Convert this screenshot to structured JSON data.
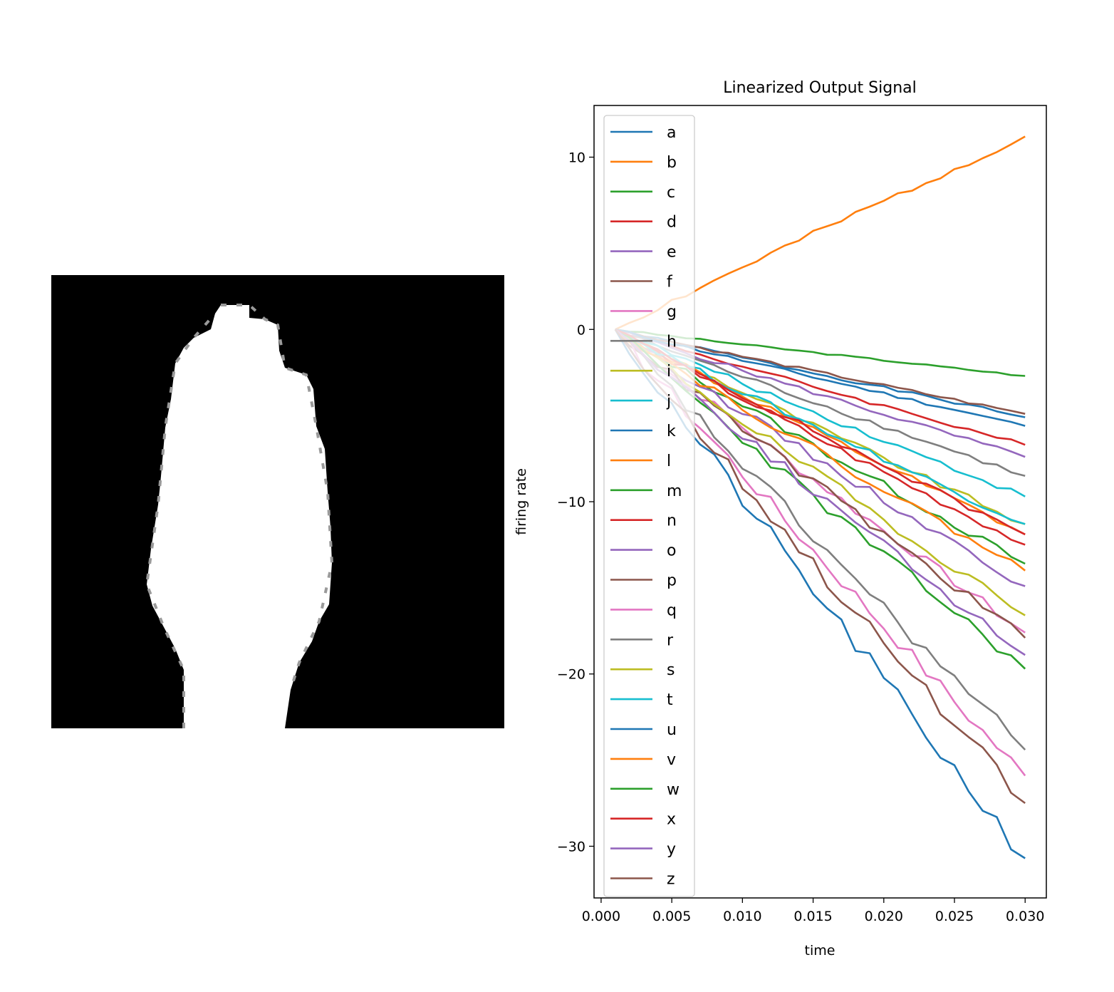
{
  "colors": [
    "#1f77b4",
    "#ff7f0e",
    "#2ca02c",
    "#d62728",
    "#9467bd",
    "#8c564b",
    "#e377c2",
    "#7f7f7f",
    "#bcbd22",
    "#17becf"
  ],
  "image_panel": {
    "description_icon": "silhouette-image",
    "pixel_mask_type": "binary-grayscale"
  },
  "chart_data": {
    "type": "line",
    "title": "Linearized Output Signal",
    "xlabel": "time",
    "ylabel": "firing rate",
    "xlim": [
      -0.0005,
      0.0315
    ],
    "ylim": [
      -33,
      13
    ],
    "xticks": [
      0.0,
      0.005,
      0.01,
      0.015,
      0.02,
      0.025,
      0.03
    ],
    "xtick_labels": [
      "0.000",
      "0.005",
      "0.010",
      "0.015",
      "0.020",
      "0.025",
      "0.030"
    ],
    "yticks": [
      -30,
      -20,
      -10,
      0,
      10
    ],
    "ytick_labels": [
      "−30",
      "−20",
      "−10",
      "0",
      "10"
    ],
    "legend": "upper-left",
    "grid": false,
    "x": [
      0.001,
      0.03
    ],
    "series": [
      {
        "name": "a",
        "end": -5.1
      },
      {
        "name": "b",
        "end": 11.2
      },
      {
        "name": "c",
        "end": -2.7
      },
      {
        "name": "d",
        "end": -6.7
      },
      {
        "name": "e",
        "end": -7.4
      },
      {
        "name": "f",
        "end": -4.9
      },
      {
        "name": "g",
        "end": -17.6
      },
      {
        "name": "h",
        "end": -8.5
      },
      {
        "name": "i",
        "end": -11.3
      },
      {
        "name": "j",
        "end": -9.7
      },
      {
        "name": "k",
        "end": -5.6
      },
      {
        "name": "l",
        "end": -11.9
      },
      {
        "name": "m",
        "end": -13.6
      },
      {
        "name": "n",
        "end": -12.5
      },
      {
        "name": "o",
        "end": -14.9
      },
      {
        "name": "p",
        "end": -17.9
      },
      {
        "name": "q",
        "end": -25.9
      },
      {
        "name": "r",
        "end": -24.4
      },
      {
        "name": "s",
        "end": -16.6
      },
      {
        "name": "t",
        "end": -11.3
      },
      {
        "name": "u",
        "end": -30.7
      },
      {
        "name": "v",
        "end": -14.0
      },
      {
        "name": "w",
        "end": -19.7
      },
      {
        "name": "x",
        "end": -11.9
      },
      {
        "name": "y",
        "end": -18.9
      },
      {
        "name": "z",
        "end": -27.5
      }
    ]
  }
}
